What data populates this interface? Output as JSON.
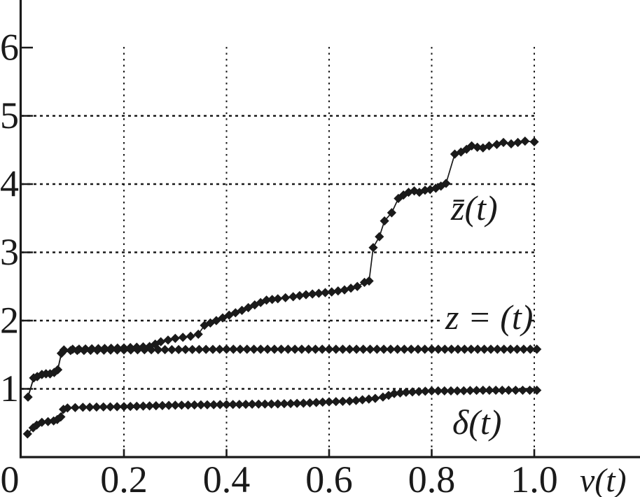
{
  "figure": {
    "background": "#ffffff",
    "ink_color": "#1a1a1a"
  },
  "chart_data": {
    "type": "line",
    "title": "",
    "xlabel": "v(t)",
    "ylabel": "",
    "xlim": [
      0,
      1.2
    ],
    "ylim": [
      0,
      6.7
    ],
    "grid": {
      "style": "dashed",
      "horizontal_at": [
        1,
        2,
        3,
        4,
        5
      ],
      "vertical_at": [
        0.2,
        0.4,
        0.6,
        0.8,
        1.0
      ]
    },
    "x_ticks": [
      {
        "v": 0,
        "label": "0"
      },
      {
        "v": 0.2,
        "label": "0.2"
      },
      {
        "v": 0.4,
        "label": "0.4"
      },
      {
        "v": 0.6,
        "label": "0.6"
      },
      {
        "v": 0.8,
        "label": "0.8"
      },
      {
        "v": 1.0,
        "label": "1.0"
      }
    ],
    "y_ticks": [
      {
        "v": 1,
        "label": "1"
      },
      {
        "v": 2,
        "label": "2"
      },
      {
        "v": 3,
        "label": "3"
      },
      {
        "v": 4,
        "label": "4"
      },
      {
        "v": 5,
        "label": "5"
      },
      {
        "v": 6,
        "label": "6"
      }
    ],
    "series": [
      {
        "id": "zbar",
        "name": "z̄(t)",
        "marker": "diamond",
        "points": [
          [
            0.013,
            0.88
          ],
          [
            0.024,
            1.16
          ],
          [
            0.031,
            1.18
          ],
          [
            0.04,
            1.21
          ],
          [
            0.048,
            1.22
          ],
          [
            0.056,
            1.22
          ],
          [
            0.064,
            1.24
          ],
          [
            0.071,
            1.28
          ],
          [
            0.078,
            1.52
          ],
          [
            0.083,
            1.57
          ],
          [
            0.1,
            1.58
          ],
          [
            0.15,
            1.59
          ],
          [
            0.2,
            1.6
          ],
          [
            0.25,
            1.62
          ],
          [
            0.272,
            1.69
          ],
          [
            0.3,
            1.74
          ],
          [
            0.33,
            1.77
          ],
          [
            0.345,
            1.8
          ],
          [
            0.357,
            1.93
          ],
          [
            0.38,
            2.0
          ],
          [
            0.405,
            2.08
          ],
          [
            0.43,
            2.15
          ],
          [
            0.455,
            2.23
          ],
          [
            0.478,
            2.3
          ],
          [
            0.5,
            2.32
          ],
          [
            0.53,
            2.35
          ],
          [
            0.555,
            2.38
          ],
          [
            0.58,
            2.4
          ],
          [
            0.605,
            2.42
          ],
          [
            0.63,
            2.45
          ],
          [
            0.655,
            2.5
          ],
          [
            0.669,
            2.56
          ],
          [
            0.678,
            2.58
          ],
          [
            0.686,
            3.07
          ],
          [
            0.698,
            3.23
          ],
          [
            0.708,
            3.46
          ],
          [
            0.722,
            3.58
          ],
          [
            0.735,
            3.79
          ],
          [
            0.745,
            3.84
          ],
          [
            0.755,
            3.88
          ],
          [
            0.766,
            3.9
          ],
          [
            0.776,
            3.88
          ],
          [
            0.787,
            3.91
          ],
          [
            0.797,
            3.92
          ],
          [
            0.808,
            3.94
          ],
          [
            0.818,
            3.97
          ],
          [
            0.828,
            4.01
          ],
          [
            0.845,
            4.44
          ],
          [
            0.857,
            4.47
          ],
          [
            0.868,
            4.51
          ],
          [
            0.878,
            4.56
          ],
          [
            0.889,
            4.54
          ],
          [
            0.9,
            4.53
          ],
          [
            0.912,
            4.56
          ],
          [
            0.927,
            4.58
          ],
          [
            0.94,
            4.61
          ],
          [
            0.955,
            4.59
          ],
          [
            0.968,
            4.61
          ],
          [
            0.982,
            4.63
          ],
          [
            1.0,
            4.62
          ]
        ]
      },
      {
        "id": "zeq",
        "name": "z = (t)",
        "marker": "diamond",
        "points": [
          [
            0.013,
            0.88
          ],
          [
            0.024,
            1.16
          ],
          [
            0.031,
            1.18
          ],
          [
            0.04,
            1.21
          ],
          [
            0.048,
            1.22
          ],
          [
            0.056,
            1.22
          ],
          [
            0.064,
            1.24
          ],
          [
            0.071,
            1.28
          ],
          [
            0.078,
            1.52
          ],
          [
            0.083,
            1.56
          ],
          [
            0.2,
            1.57
          ],
          [
            0.4,
            1.58
          ],
          [
            0.6,
            1.58
          ],
          [
            0.8,
            1.58
          ],
          [
            1.005,
            1.58
          ]
        ]
      },
      {
        "id": "delta",
        "name": "δ(t)",
        "marker": "diamond",
        "points": [
          [
            0.012,
            0.34
          ],
          [
            0.023,
            0.43
          ],
          [
            0.03,
            0.47
          ],
          [
            0.04,
            0.51
          ],
          [
            0.052,
            0.52
          ],
          [
            0.063,
            0.53
          ],
          [
            0.07,
            0.55
          ],
          [
            0.077,
            0.59
          ],
          [
            0.082,
            0.7
          ],
          [
            0.09,
            0.72
          ],
          [
            0.12,
            0.73
          ],
          [
            0.2,
            0.74
          ],
          [
            0.3,
            0.76
          ],
          [
            0.4,
            0.77
          ],
          [
            0.5,
            0.78
          ],
          [
            0.55,
            0.79
          ],
          [
            0.6,
            0.81
          ],
          [
            0.64,
            0.82
          ],
          [
            0.665,
            0.84
          ],
          [
            0.69,
            0.86
          ],
          [
            0.705,
            0.88
          ],
          [
            0.727,
            0.93
          ],
          [
            0.75,
            0.95
          ],
          [
            0.775,
            0.96
          ],
          [
            0.8,
            0.97
          ],
          [
            0.85,
            0.97
          ],
          [
            0.9,
            0.98
          ],
          [
            0.95,
            0.98
          ],
          [
            1.005,
            0.98
          ]
        ]
      }
    ]
  }
}
